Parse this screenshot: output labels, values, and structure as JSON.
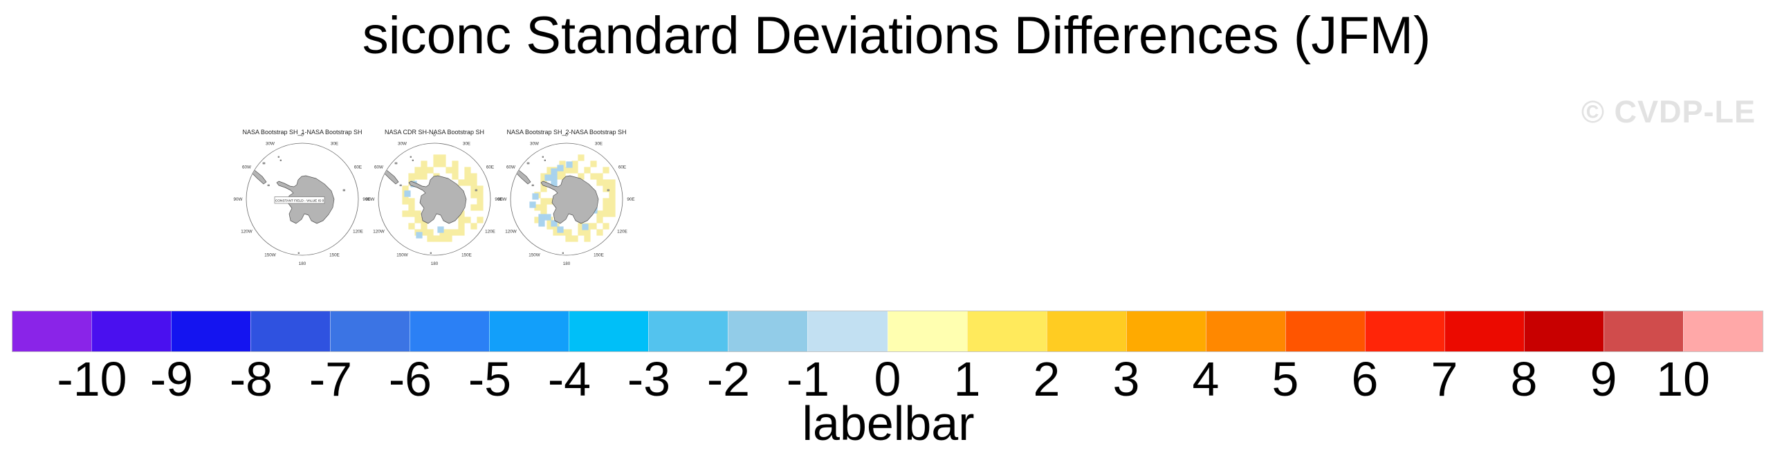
{
  "title": "siconc Standard Deviations Differences (JFM)",
  "watermark": "© CVDP-LE",
  "chart_data": {
    "type": "heatmap",
    "title": "siconc Standard Deviations Differences (JFM)",
    "variable": "siconc",
    "season": "JFM",
    "projection": "south polar stereographic",
    "panels": [
      {
        "title": "NASA Bootstrap SH_1-NASA Bootstrap SH",
        "annotation": "CONSTANT FIELD - VALUE IS 0",
        "yellow_ring": false,
        "ring_seed": 0,
        "blue_cells": []
      },
      {
        "title": "NASA CDR SH-NASA Bootstrap SH",
        "annotation": "",
        "yellow_ring": true,
        "ring_seed": 1.3,
        "blue_cells": [
          [
            75,
            83
          ],
          [
            66,
            97
          ],
          [
            83,
            157
          ],
          [
            114,
            149
          ]
        ]
      },
      {
        "title": "NASA Bootstrap SH_2-NASA Bootstrap SH",
        "annotation": "",
        "yellow_ring": true,
        "ring_seed": 2.7,
        "blue_cells": [
          [
            87,
            65
          ],
          [
            87,
            74
          ],
          [
            78,
            74
          ],
          [
            87,
            83
          ],
          [
            96,
            60
          ],
          [
            60,
            101
          ],
          [
            69,
            131
          ],
          [
            78,
            131
          ],
          [
            69,
            140
          ],
          [
            87,
            140
          ],
          [
            96,
            149
          ],
          [
            132,
            145
          ],
          [
            145,
            121
          ],
          [
            56,
            113
          ],
          [
            109,
            55
          ]
        ]
      }
    ],
    "panel_centers_x": [
      437,
      628,
      819
    ],
    "lon_labels": [
      "0",
      "30E",
      "60E",
      "90E",
      "120E",
      "150E",
      "180",
      "150W",
      "120W",
      "90W",
      "60W",
      "30W"
    ],
    "colorbar": {
      "label": "labelbar",
      "tick_labels": [
        "-10",
        "-9",
        "-8",
        "-7",
        "-6",
        "-5",
        "-4",
        "-3",
        "-2",
        "-1",
        "0",
        "1",
        "2",
        "3",
        "4",
        "5",
        "6",
        "7",
        "8",
        "9",
        "10"
      ],
      "ticks": [
        -10,
        -9,
        -8,
        -7,
        -6,
        -5,
        -4,
        -3,
        -2,
        -1,
        0,
        1,
        2,
        3,
        4,
        5,
        6,
        7,
        8,
        9,
        10
      ],
      "colors": [
        "#8a24e8",
        "#4a10ef",
        "#1414f0",
        "#2f52e0",
        "#3b74e4",
        "#2b80f5",
        "#129ffa",
        "#00bff8",
        "#53c3ee",
        "#92cce8",
        "#c2e0f2",
        "#ffffb0",
        "#ffea5c",
        "#ffcc22",
        "#ffaa00",
        "#ff8800",
        "#ff5500",
        "#ff2508",
        "#eb0a00",
        "#c80000",
        "#d04c4c",
        "#ffa8a8"
      ]
    }
  },
  "map_style_colors": {
    "land_fill": "#b4b4b4",
    "land_outline": "#4f4f4f",
    "circle_outline": "#6b6b6b",
    "ring_yellow": "#f7eda2",
    "cell_blue": "#a9d3ee",
    "label_gray": "#333333"
  }
}
